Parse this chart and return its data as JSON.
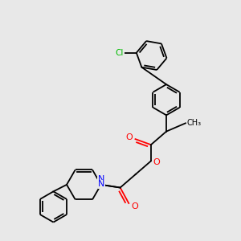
{
  "bg_color": "#e8e8e8",
  "bond_color": "#000000",
  "atom_colors": {
    "O": "#ff0000",
    "N": "#0000ff",
    "Cl": "#00bb00",
    "C": "#000000"
  },
  "lw": 1.3,
  "font_size": 7.5
}
